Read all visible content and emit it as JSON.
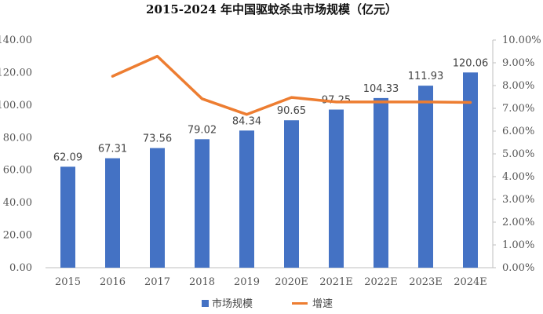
{
  "chart_data": {
    "type": "bar",
    "title": "2015-2024 年中国驱蚊杀虫市场规模（亿元）",
    "categories": [
      "2015",
      "2016",
      "2017",
      "2018",
      "2019",
      "2020E",
      "2021E",
      "2022E",
      "2023E",
      "2024E"
    ],
    "series": [
      {
        "name": "市场规模",
        "type": "bar",
        "axis": "left",
        "color": "#4472C4",
        "values": [
          62.09,
          67.31,
          73.56,
          79.02,
          84.34,
          90.65,
          97.25,
          104.33,
          111.93,
          120.06
        ],
        "labels": [
          "62.09",
          "67.31",
          "73.56",
          "79.02",
          "84.34",
          "90.65",
          "97.25",
          "104.33",
          "111.93",
          "120.06"
        ]
      },
      {
        "name": "增速",
        "type": "line",
        "axis": "right",
        "color": "#ED7D31",
        "values": [
          null,
          0.0841,
          0.0929,
          0.0742,
          0.0673,
          0.0748,
          0.0728,
          0.0728,
          0.0728,
          0.0726
        ]
      }
    ],
    "y_left": {
      "lim": [
        0,
        140
      ],
      "ticks": [
        0,
        20,
        40,
        60,
        80,
        100,
        120,
        140
      ],
      "tick_labels": [
        "0.00",
        "20.00",
        "40.00",
        "60.00",
        "80.00",
        "100.00",
        "120.00",
        "140.00"
      ]
    },
    "y_right": {
      "lim": [
        0,
        0.1
      ],
      "ticks": [
        0,
        0.01,
        0.02,
        0.03,
        0.04,
        0.05,
        0.06,
        0.07,
        0.08,
        0.09,
        0.1
      ],
      "tick_labels": [
        "0.00%",
        "1.00%",
        "2.00%",
        "3.00%",
        "4.00%",
        "5.00%",
        "6.00%",
        "7.00%",
        "8.00%",
        "9.00%",
        "10.00%"
      ]
    },
    "grid": false,
    "legend": "bottom"
  }
}
